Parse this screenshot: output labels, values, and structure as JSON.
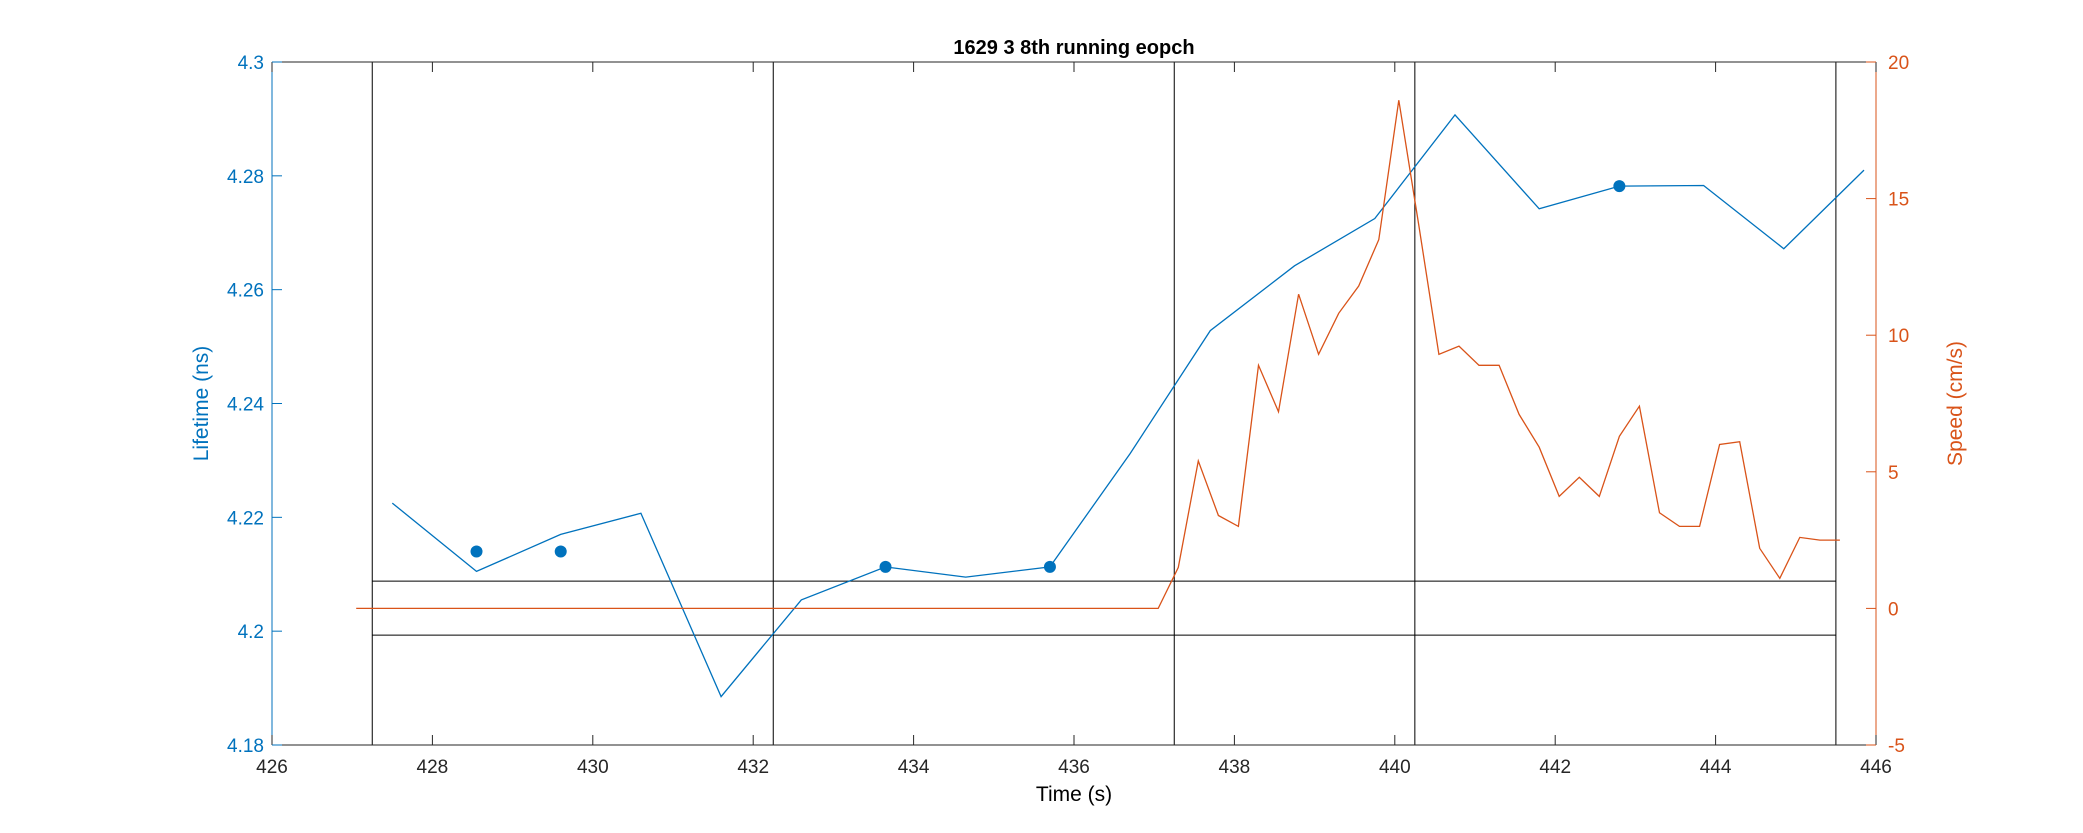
{
  "chart_data": {
    "type": "line",
    "title": "1629 3 8th running eopch",
    "xlabel": "Time (s)",
    "ylabel_left": "Lifetime (ns)",
    "ylabel_right": "Speed (cm/s)",
    "xlim": [
      426,
      446
    ],
    "ylim_left": [
      4.18,
      4.3
    ],
    "ylim_right": [
      -5,
      20
    ],
    "x_ticks": [
      426,
      428,
      430,
      432,
      434,
      436,
      438,
      440,
      442,
      444,
      446
    ],
    "x_tick_labels": [
      "426",
      "428",
      "430",
      "432",
      "434",
      "436",
      "438",
      "440",
      "442",
      "444",
      "446"
    ],
    "y_left_ticks": [
      4.18,
      4.2,
      4.22,
      4.24,
      4.26,
      4.28,
      4.3
    ],
    "y_left_tick_labels": [
      "4.18",
      "4.2",
      "4.22",
      "4.24",
      "4.26",
      "4.28",
      "4.3"
    ],
    "y_right_ticks": [
      -5,
      0,
      5,
      10,
      15,
      20
    ],
    "y_right_tick_labels": [
      "-5",
      "0",
      "5",
      "10",
      "15",
      "20"
    ],
    "grid": false,
    "colors": {
      "left": "#0072BD",
      "right": "#D95319",
      "reference": "#000000"
    },
    "series": [
      {
        "axis": "left",
        "style": "line",
        "x": [
          427.5,
          428.55,
          429.6,
          430.6,
          431.6,
          432.6,
          433.65,
          434.65,
          435.7,
          436.7,
          437.7,
          438.75,
          439.75,
          440.75,
          441.8,
          442.8,
          443.85,
          444.85,
          445.85
        ],
        "y": [
          4.2225,
          4.2105,
          4.217,
          4.2207,
          4.1885,
          4.2055,
          4.2113,
          4.2095,
          4.2113,
          4.2312,
          4.2528,
          4.2642,
          4.2725,
          4.2907,
          4.2742,
          4.2782,
          4.2783,
          4.2672,
          4.281
        ]
      },
      {
        "axis": "left",
        "style": "markers",
        "x": [
          428.55,
          429.6,
          433.65,
          435.7,
          442.8
        ],
        "y": [
          4.214,
          4.214,
          4.2113,
          4.2113,
          4.2782
        ]
      },
      {
        "axis": "right",
        "style": "line",
        "x": [
          427.05,
          437.05,
          437.3,
          437.55,
          437.8,
          438.05,
          438.3,
          438.55,
          438.8,
          439.05,
          439.3,
          439.55,
          439.8,
          440.05,
          440.3,
          440.55,
          440.8,
          441.05,
          441.3,
          441.55,
          441.8,
          442.05,
          442.3,
          442.55,
          442.8,
          443.05,
          443.3,
          443.55,
          443.8,
          444.05,
          444.3,
          444.55,
          444.8,
          445.05,
          445.3,
          445.55
        ],
        "y": [
          0,
          0,
          1.5,
          5.4,
          3.4,
          3.0,
          8.9,
          7.2,
          11.5,
          9.3,
          10.8,
          11.8,
          13.5,
          18.6,
          14.0,
          9.3,
          9.6,
          8.9,
          8.9,
          7.1,
          5.9,
          4.1,
          4.8,
          4.1,
          6.3,
          7.4,
          3.5,
          3.0,
          3.0,
          6.0,
          6.1,
          2.2,
          1.1,
          2.6,
          2.5,
          2.5
        ]
      }
    ],
    "vertical_lines_x": [
      427.25,
      432.25,
      437.25,
      440.25,
      445.5
    ],
    "horizontal_lines_y_left": [
      4.2088,
      4.1993
    ]
  }
}
